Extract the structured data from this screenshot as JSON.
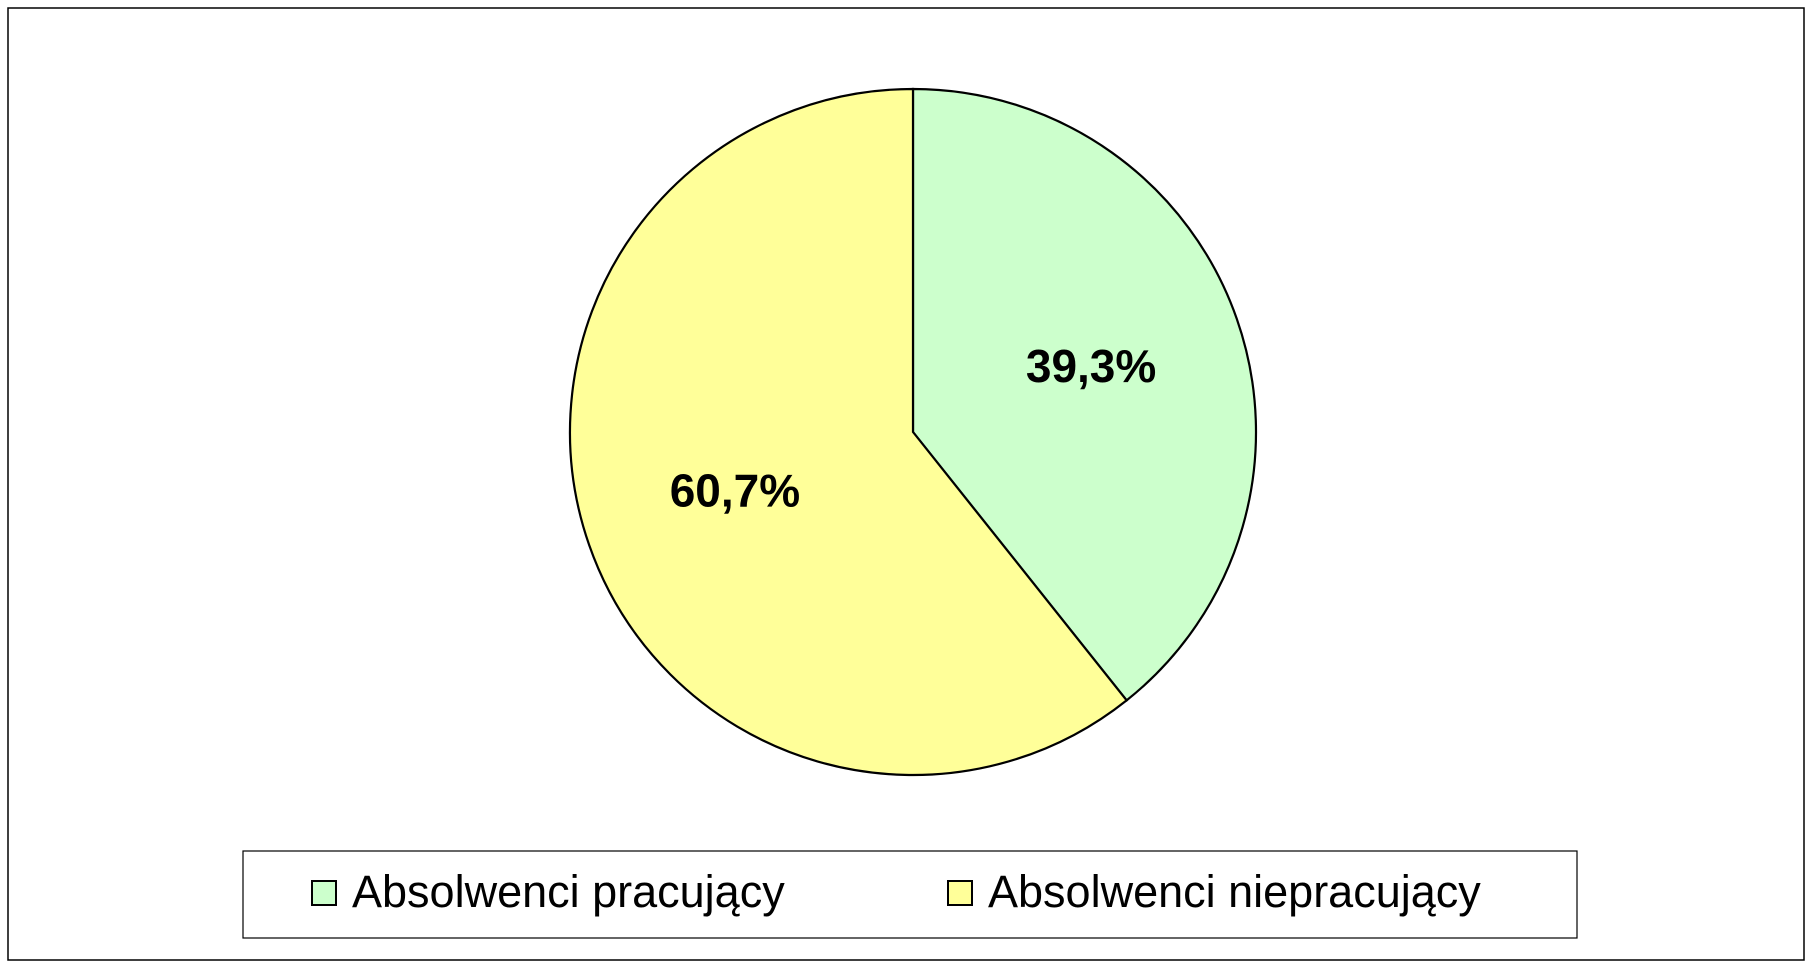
{
  "chart_data": {
    "type": "pie",
    "categories": [
      "Absolwenci pracujący",
      "Absolwenci niepracujący"
    ],
    "values": [
      39.3,
      60.7
    ],
    "value_labels": [
      "39,3%",
      "60,7%"
    ],
    "colors": [
      "#ccffcc",
      "#ffff99"
    ],
    "legend": "bottom"
  }
}
